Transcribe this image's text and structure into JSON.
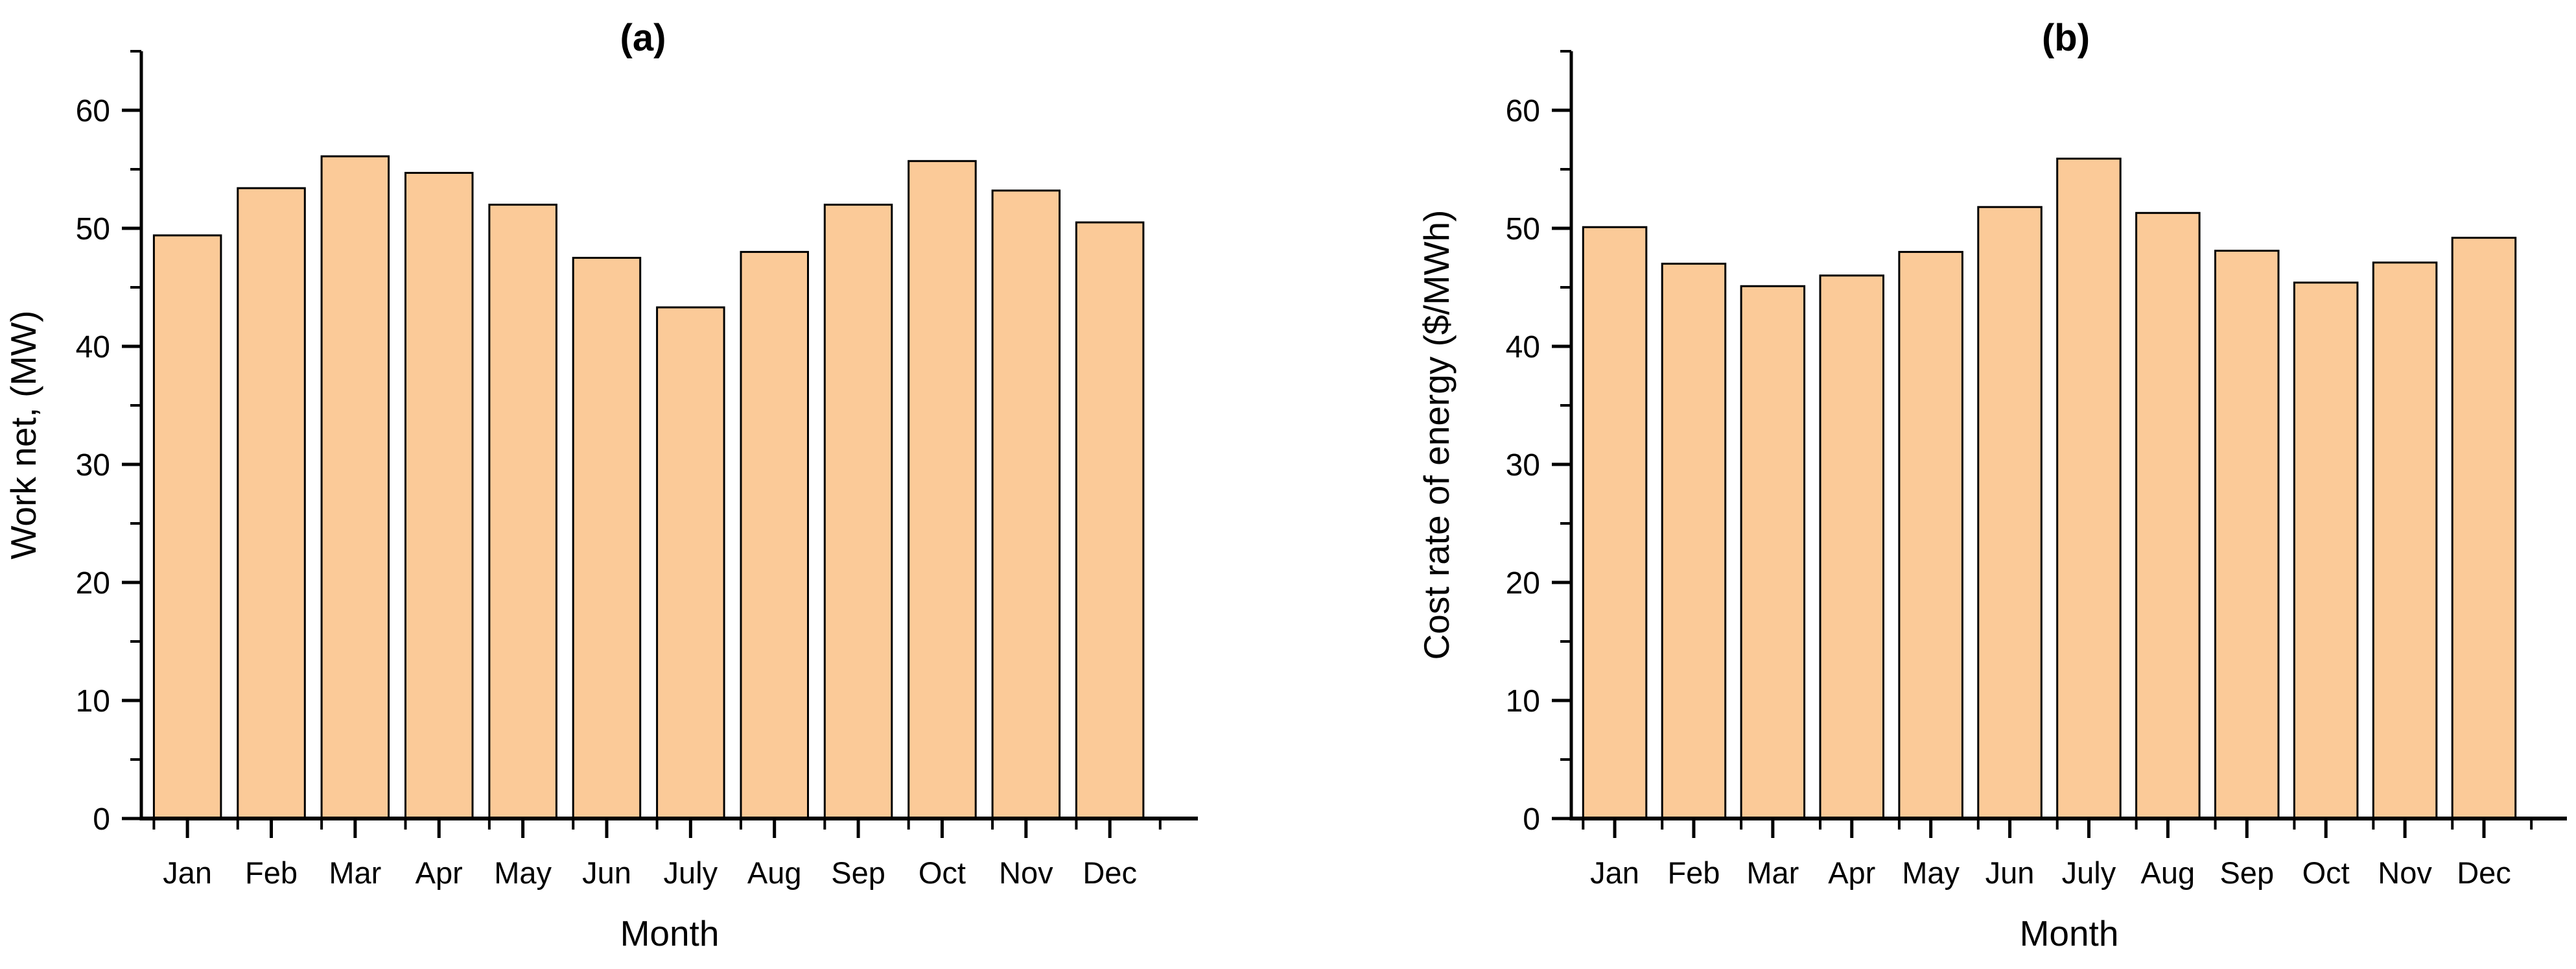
{
  "figure": {
    "background_color": "#ffffff",
    "text_color": "#000000"
  },
  "style": {
    "bar_fill": "#FBCA98",
    "bar_border": "#000000",
    "axis_color": "#000000"
  },
  "chart_data": [
    {
      "type": "bar",
      "panel_label": "(a)",
      "xlabel": "Month",
      "ylabel": "Work net, (MW)",
      "categories": [
        "Jan",
        "Feb",
        "Mar",
        "Apr",
        "May",
        "Jun",
        "July",
        "Aug",
        "Sep",
        "Oct",
        "Nov",
        "Dec"
      ],
      "values": [
        49.4,
        53.4,
        56.1,
        54.7,
        52.0,
        47.5,
        43.3,
        48.0,
        52.0,
        55.7,
        53.2,
        50.5
      ],
      "ylim": [
        0,
        65
      ],
      "yticks_major": [
        0,
        10,
        20,
        30,
        40,
        50,
        60
      ],
      "ytick_minor_step": 5,
      "grid": false,
      "legend": "none",
      "bar_color": "#FBCA98",
      "bar_edge_color": "#000000"
    },
    {
      "type": "bar",
      "panel_label": "(b)",
      "xlabel": "Month",
      "ylabel": "Cost rate of energy ($/MWh)",
      "categories": [
        "Jan",
        "Feb",
        "Mar",
        "Apr",
        "May",
        "Jun",
        "July",
        "Aug",
        "Sep",
        "Oct",
        "Nov",
        "Dec"
      ],
      "values": [
        50.1,
        47.0,
        45.1,
        46.0,
        48.0,
        51.8,
        55.9,
        51.3,
        48.1,
        45.4,
        47.1,
        49.2
      ],
      "ylim": [
        0,
        65
      ],
      "yticks_major": [
        0,
        10,
        20,
        30,
        40,
        50,
        60
      ],
      "ytick_minor_step": 5,
      "grid": false,
      "legend": "none",
      "bar_color": "#FBCA98",
      "bar_edge_color": "#000000"
    }
  ]
}
